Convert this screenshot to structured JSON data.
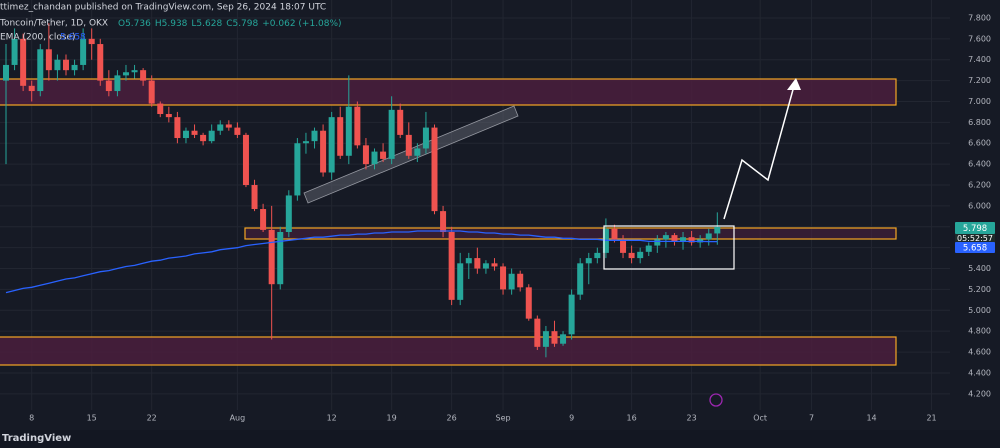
{
  "header": "ttimez_chandan published on TradingView.com, Sep 26, 2024 18:07 UTC",
  "footer": "TradingView",
  "chart_data": {
    "type": "candlestick",
    "up_color": "#26a69a",
    "down_color": "#ef5350",
    "ohlc_labels": [
      "O5.736",
      "H5.938",
      "L5.628",
      "C5.798",
      "+0.062 (+1.08%)"
    ],
    "ema_legend_value": "5.658",
    "last_price_label": "5.798",
    "countdown": "05:52:57",
    "ema_price_label": "5.658",
    "categories": [
      null,
      null,
      null,
      "8",
      null,
      null,
      null,
      null,
      null,
      null,
      "15",
      null,
      null,
      null,
      null,
      null,
      null,
      "22",
      null,
      null,
      null,
      null,
      null,
      null,
      null,
      null,
      null,
      "Aug",
      null,
      null,
      null,
      null,
      null,
      null,
      null,
      null,
      null,
      null,
      "12",
      null,
      null,
      null,
      null,
      null,
      null,
      "19",
      null,
      null,
      null,
      null,
      null,
      null,
      "26",
      null,
      null,
      null,
      null,
      null,
      "Sep",
      null,
      null,
      null,
      null,
      null,
      null,
      null,
      "9",
      null,
      null,
      null,
      null,
      null,
      null,
      "16",
      null,
      null,
      null,
      null,
      null,
      null,
      "23",
      null,
      null,
      null,
      null,
      null,
      null,
      null,
      "Oct",
      null,
      null,
      null,
      null,
      null,
      "7",
      null,
      null,
      null,
      null,
      null,
      null,
      "14",
      null,
      null,
      null,
      null,
      null,
      null,
      "21",
      null,
      null
    ],
    "series": [
      {
        "name": "Toncoin/Tether, 1D, OKX",
        "open": [
          7.2,
          7.35,
          7.6,
          7.15,
          7.1,
          7.5,
          7.3,
          7.4,
          7.3,
          7.35,
          7.6,
          7.55,
          7.2,
          7.1,
          7.25,
          7.28,
          7.3,
          7.2,
          6.98,
          6.88,
          6.85,
          6.65,
          6.72,
          6.68,
          6.62,
          6.72,
          6.78,
          6.75,
          6.68,
          6.2,
          5.97,
          5.77,
          5.25,
          5.75,
          6.1,
          6.6,
          6.62,
          6.72,
          6.32,
          6.85,
          6.48,
          6.95,
          6.58,
          6.4,
          6.52,
          6.45,
          6.92,
          6.68,
          6.48,
          6.55,
          6.75,
          5.95,
          5.75,
          5.1,
          5.45,
          5.5,
          5.4,
          5.45,
          5.42,
          5.2,
          5.35,
          5.22,
          4.92,
          4.65,
          4.8,
          4.68,
          4.77,
          5.15,
          5.45,
          5.5,
          5.55,
          5.78,
          5.68,
          5.55,
          5.5,
          5.56,
          5.62,
          5.68,
          5.72,
          5.66,
          5.7,
          5.65,
          5.68,
          5.736,
          null,
          null,
          null,
          null,
          null,
          null,
          null,
          null,
          null,
          null,
          null,
          null,
          null,
          null,
          null,
          null,
          null,
          null,
          null,
          null,
          null,
          null,
          null,
          null,
          null,
          null,
          null
        ],
        "high": [
          7.55,
          7.7,
          7.65,
          7.2,
          7.55,
          7.75,
          7.45,
          7.45,
          7.4,
          7.7,
          7.7,
          7.6,
          7.3,
          7.3,
          7.35,
          7.35,
          7.32,
          7.25,
          7.0,
          6.95,
          6.9,
          6.75,
          6.78,
          6.7,
          6.78,
          6.82,
          6.82,
          6.8,
          6.7,
          6.25,
          6.02,
          6.0,
          5.8,
          6.15,
          6.65,
          6.7,
          6.75,
          6.78,
          6.9,
          6.95,
          7.25,
          7.0,
          6.65,
          6.55,
          6.6,
          7.05,
          6.98,
          6.8,
          6.6,
          6.9,
          6.78,
          6.0,
          5.8,
          5.55,
          5.55,
          5.6,
          5.48,
          5.5,
          5.45,
          5.4,
          5.38,
          5.25,
          4.95,
          4.85,
          4.9,
          4.8,
          5.2,
          5.5,
          5.55,
          5.6,
          5.88,
          5.82,
          5.72,
          5.62,
          5.6,
          5.65,
          5.72,
          5.75,
          5.74,
          5.75,
          5.76,
          5.72,
          5.78,
          5.938,
          null,
          null,
          null,
          null,
          null,
          null,
          null,
          null,
          null,
          null,
          null,
          null,
          null,
          null,
          null,
          null,
          null,
          null,
          null,
          null,
          null,
          null,
          null,
          null,
          null,
          null,
          null
        ],
        "low": [
          6.4,
          7.3,
          7.1,
          7.0,
          7.05,
          7.2,
          7.2,
          7.25,
          7.25,
          7.3,
          7.4,
          7.15,
          7.05,
          7.05,
          7.2,
          7.22,
          7.15,
          6.95,
          6.85,
          6.8,
          6.6,
          6.6,
          6.65,
          6.58,
          6.6,
          6.68,
          6.72,
          6.65,
          6.18,
          5.95,
          5.75,
          4.72,
          5.2,
          5.7,
          6.05,
          6.5,
          6.55,
          6.28,
          6.25,
          6.45,
          6.4,
          6.55,
          6.35,
          6.35,
          6.42,
          6.4,
          6.65,
          6.45,
          6.42,
          6.5,
          5.92,
          5.7,
          5.05,
          5.05,
          5.3,
          5.35,
          5.35,
          5.38,
          5.15,
          5.15,
          5.18,
          4.9,
          4.62,
          4.55,
          4.65,
          4.66,
          4.72,
          5.1,
          5.25,
          5.45,
          5.5,
          5.65,
          5.5,
          5.45,
          5.45,
          5.52,
          5.55,
          5.6,
          5.62,
          5.58,
          5.62,
          5.6,
          5.62,
          5.628,
          null,
          null,
          null,
          null,
          null,
          null,
          null,
          null,
          null,
          null,
          null,
          null,
          null,
          null,
          null,
          null,
          null,
          null,
          null,
          null,
          null,
          null,
          null,
          null,
          null,
          null,
          null
        ],
        "close": [
          7.35,
          7.6,
          7.15,
          7.1,
          7.5,
          7.3,
          7.4,
          7.3,
          7.35,
          7.6,
          7.55,
          7.2,
          7.1,
          7.25,
          7.28,
          7.3,
          7.2,
          6.98,
          6.88,
          6.85,
          6.65,
          6.72,
          6.68,
          6.62,
          6.72,
          6.78,
          6.75,
          6.68,
          6.2,
          5.97,
          5.77,
          5.25,
          5.75,
          6.1,
          6.6,
          6.62,
          6.72,
          6.32,
          6.85,
          6.48,
          6.95,
          6.58,
          6.4,
          6.52,
          6.45,
          6.92,
          6.68,
          6.48,
          6.55,
          6.75,
          5.95,
          5.75,
          5.1,
          5.45,
          5.5,
          5.4,
          5.45,
          5.42,
          5.2,
          5.35,
          5.22,
          4.92,
          4.65,
          4.8,
          4.68,
          4.77,
          5.15,
          5.45,
          5.5,
          5.55,
          5.78,
          5.68,
          5.55,
          5.5,
          5.56,
          5.62,
          5.68,
          5.72,
          5.66,
          5.7,
          5.65,
          5.68,
          5.736,
          5.798,
          null,
          null,
          null,
          null,
          null,
          null,
          null,
          null,
          null,
          null,
          null,
          null,
          null,
          null,
          null,
          null,
          null,
          null,
          null,
          null,
          null,
          null,
          null,
          null,
          null,
          null,
          null
        ]
      },
      {
        "name": "EMA (200, close)",
        "color": "#2962ff",
        "values": [
          5.17,
          5.19,
          5.21,
          5.22,
          5.24,
          5.26,
          5.28,
          5.3,
          5.31,
          5.33,
          5.35,
          5.37,
          5.38,
          5.4,
          5.42,
          5.43,
          5.45,
          5.47,
          5.48,
          5.5,
          5.51,
          5.52,
          5.54,
          5.55,
          5.56,
          5.58,
          5.59,
          5.6,
          5.62,
          5.63,
          5.64,
          5.65,
          5.66,
          5.67,
          5.68,
          5.69,
          5.7,
          5.7,
          5.71,
          5.72,
          5.72,
          5.73,
          5.73,
          5.74,
          5.74,
          5.75,
          5.75,
          5.75,
          5.76,
          5.76,
          5.76,
          5.76,
          5.76,
          5.76,
          5.75,
          5.75,
          5.74,
          5.74,
          5.73,
          5.73,
          5.72,
          5.72,
          5.71,
          5.7,
          5.7,
          5.69,
          5.69,
          5.68,
          5.68,
          5.68,
          5.67,
          5.67,
          5.67,
          5.67,
          5.67,
          5.66,
          5.66,
          5.66,
          5.66,
          5.66,
          5.66,
          5.66,
          5.658,
          5.658,
          null,
          null,
          null,
          null,
          null,
          null,
          null,
          null,
          null,
          null,
          null,
          null,
          null,
          null,
          null,
          null,
          null,
          null,
          null,
          null,
          null,
          null,
          null,
          null,
          null,
          null,
          null
        ]
      }
    ],
    "ylim": [
      4.093,
      7.972
    ],
    "yticks": [
      {
        "value": 4.2,
        "label": "4.200"
      },
      {
        "value": 4.4,
        "label": "4.400"
      },
      {
        "value": 4.6,
        "label": "4.600"
      },
      {
        "value": 4.8,
        "label": "4.800"
      },
      {
        "value": 5.0,
        "label": "5.000"
      },
      {
        "value": 5.2,
        "label": "5.200"
      },
      {
        "value": 5.4,
        "label": "5.400"
      },
      {
        "value": 5.6,
        "label": "5.600"
      },
      {
        "value": 5.8,
        "label": "5.800"
      },
      {
        "value": 6.0,
        "label": "6.000"
      },
      {
        "value": 6.2,
        "label": "6.200"
      },
      {
        "value": 6.4,
        "label": "6.400"
      },
      {
        "value": 6.6,
        "label": "6.600"
      },
      {
        "value": 6.8,
        "label": "6.800"
      },
      {
        "value": 7.0,
        "label": "7.000"
      },
      {
        "value": 7.2,
        "label": "7.200"
      },
      {
        "value": 7.4,
        "label": "7.400"
      },
      {
        "value": 7.6,
        "label": "7.600"
      },
      {
        "value": 7.8,
        "label": "7.800"
      }
    ],
    "grid": true
  }
}
